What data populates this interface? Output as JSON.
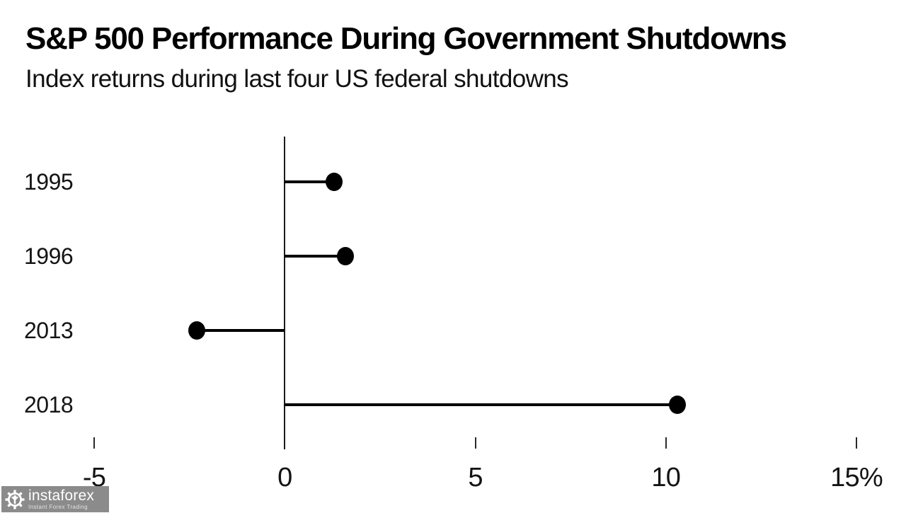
{
  "header": {
    "title": "S&P 500 Performance During Government Shutdowns",
    "subtitle": "Index returns during last four US federal shutdowns"
  },
  "chart_data": {
    "type": "bar",
    "subtype": "horizontal-lollipop",
    "title": "S&P 500 Performance During Government Shutdowns",
    "subtitle": "Index returns during last four US federal shutdowns",
    "categories": [
      "1995",
      "1996",
      "2013",
      "2018"
    ],
    "values": [
      1.3,
      1.6,
      -2.3,
      10.3
    ],
    "unit": "%",
    "xlabel": "",
    "ylabel": "",
    "xlim": [
      -5,
      15
    ],
    "xticks": [
      -5,
      0,
      5,
      10,
      15
    ],
    "xtick_labels": [
      "-5",
      "0",
      "5",
      "10",
      "15%"
    ],
    "grid": false,
    "legend_position": "none",
    "colors": {
      "dot": "#000000",
      "stem": "#000000",
      "axis": "#1a1a1a",
      "text": "#141414",
      "background": "#ffffff"
    }
  },
  "watermark": {
    "brand": "instaforex",
    "tagline": "Instant Forex Trading",
    "bg_color": "#858585"
  }
}
